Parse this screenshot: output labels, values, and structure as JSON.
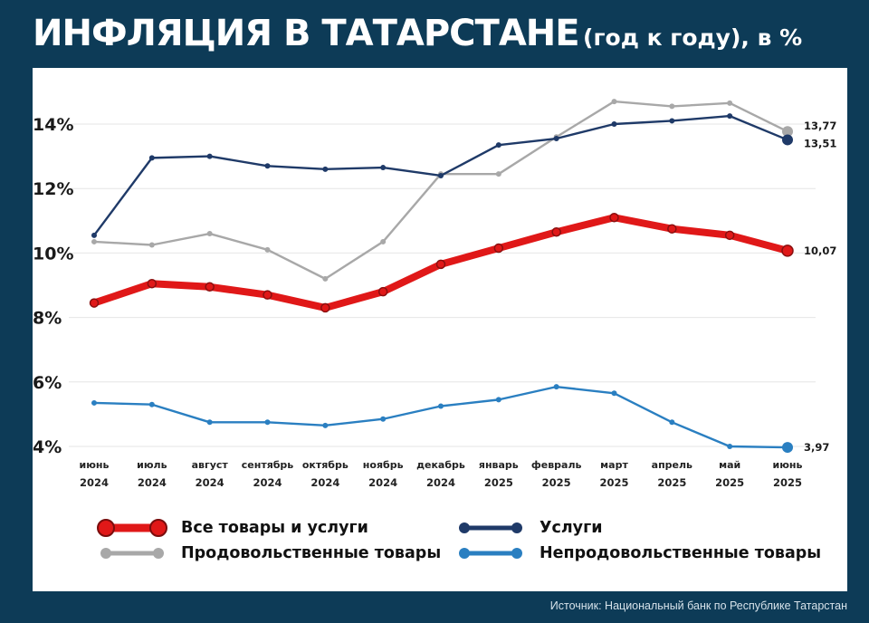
{
  "header": {
    "title_main": "ИНФЛЯЦИЯ В ТАТАРСТАНЕ",
    "title_sub": "(год к году), в %"
  },
  "source": "Источник: Национальный банк по Республике Татарстан",
  "chart_data": {
    "type": "line",
    "title": "ИНФЛЯЦИЯ В ТАТАРСТАНЕ (год к году), в %",
    "categories": [
      [
        "июнь",
        "2024"
      ],
      [
        "июль",
        "2024"
      ],
      [
        "август",
        "2024"
      ],
      [
        "сентябрь",
        "2024"
      ],
      [
        "октябрь",
        "2024"
      ],
      [
        "ноябрь",
        "2024"
      ],
      [
        "декабрь",
        "2024"
      ],
      [
        "январь",
        "2025"
      ],
      [
        "февраль",
        "2025"
      ],
      [
        "март",
        "2025"
      ],
      [
        "апрель",
        "2025"
      ],
      [
        "май",
        "2025"
      ],
      [
        "июнь",
        "2025"
      ]
    ],
    "ylim": [
      4,
      15
    ],
    "yticks": [
      4,
      6,
      8,
      10,
      12,
      14
    ],
    "ytick_labels": [
      "4%",
      "6%",
      "8%",
      "10%",
      "12%",
      "14%"
    ],
    "grid": true,
    "legend_position": "bottom",
    "series": [
      {
        "key": "all",
        "name": "Все товары и услуги",
        "color": "#e01818",
        "values": [
          8.45,
          9.05,
          8.95,
          8.7,
          8.3,
          8.8,
          9.65,
          10.15,
          10.65,
          11.1,
          10.75,
          10.55,
          10.07
        ],
        "end_label": "10,07"
      },
      {
        "key": "services",
        "name": "Услуги",
        "color": "#1f3a68",
        "values": [
          10.55,
          12.95,
          13.0,
          12.7,
          12.6,
          12.65,
          12.4,
          13.35,
          13.55,
          14.0,
          14.1,
          14.25,
          13.51
        ],
        "end_label": "13,51"
      },
      {
        "key": "food",
        "name": "Продовольственные товары",
        "color": "#a8a8a8",
        "values": [
          10.35,
          10.25,
          10.6,
          10.1,
          9.2,
          10.35,
          12.45,
          12.45,
          13.6,
          14.7,
          14.55,
          14.65,
          13.77
        ],
        "end_label": "13,77"
      },
      {
        "key": "nonfood",
        "name": "Непродовольственные товары",
        "color": "#2a7fc1",
        "values": [
          5.35,
          5.3,
          4.75,
          4.75,
          4.65,
          4.85,
          5.25,
          5.45,
          5.85,
          5.65,
          4.75,
          4.0,
          3.97
        ],
        "end_label": "3,97"
      }
    ]
  }
}
